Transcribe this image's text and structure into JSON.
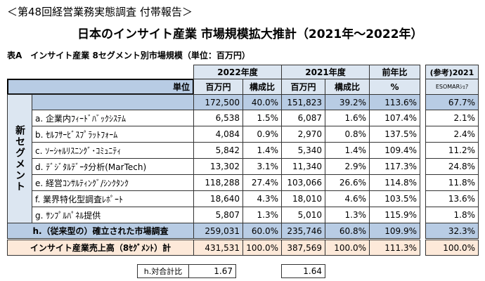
{
  "header": {
    "kicker": "＜第48回経営業務実態調査 付帯報告＞",
    "title": "日本のインサイト産業 市場規模拡大推計（2021年～2022年）"
  },
  "table": {
    "caption": "表A　インサイト産業 8セグメント別市場規模（単位：百万円）",
    "groups": [
      "2022年度",
      "2021年度",
      "前年比",
      "(参考)2021"
    ],
    "units_label": "単位",
    "units": [
      "百万円",
      "構成比",
      "百万円",
      "構成比",
      "%",
      "ESOMARｼｪｱ"
    ],
    "side_label": "新セグメント",
    "segment_total": {
      "cells": [
        "172,500",
        "40.0%",
        "151,823",
        "39.2%",
        "113.6%"
      ],
      "esomar": "67.7%"
    },
    "segments": [
      {
        "label": "a. 企業内ﾌｨｰﾄﾞﾊﾞｯｸｼｽﾃﾑ",
        "cells": [
          "6,538",
          "1.5%",
          "6,087",
          "1.6%",
          "107.4%"
        ],
        "esomar": "2.1%"
      },
      {
        "label": "b. ｾﾙﾌｻｰﾋﾞｽﾌﾟﾗｯﾄﾌｫｰﾑ",
        "cells": [
          "4,084",
          "0.9%",
          "2,970",
          "0.8%",
          "137.5%"
        ],
        "esomar": "2.4%"
      },
      {
        "label": "c. ｿｰｼｬﾙﾘｽﾆﾝｸﾞ･ｺﾐｭﾆﾃｨ",
        "cells": [
          "5,842",
          "1.4%",
          "5,340",
          "1.4%",
          "109.4%"
        ],
        "esomar": "11.2%"
      },
      {
        "label": "d. ﾃﾞｼﾞﾀﾙﾃﾞｰﾀ分析(MarTech)",
        "cells": [
          "13,302",
          "3.1%",
          "11,340",
          "2.9%",
          "117.3%"
        ],
        "esomar": "24.8%"
      },
      {
        "label": "e. 経営ｺﾝｻﾙﾃｨﾝｸﾞ/ｼﾝｸﾀﾝｸ",
        "cells": [
          "118,288",
          "27.4%",
          "103,066",
          "26.6%",
          "114.8%"
        ],
        "esomar": "11.8%"
      },
      {
        "label": "f. 業界特化型調査ﾚﾎﾟｰﾄ",
        "cells": [
          "18,640",
          "4.3%",
          "18,010",
          "4.6%",
          "103.5%"
        ],
        "esomar": "13.6%"
      },
      {
        "label": "g. ｻﾝﾌﾟﾙﾊﾟﾈﾙ提供",
        "cells": [
          "5,807",
          "1.3%",
          "5,010",
          "1.3%",
          "115.9%"
        ],
        "esomar": "1.8%"
      }
    ],
    "established": {
      "label": "h.（従来型の）確立された市場調査",
      "cells": [
        "259,031",
        "60.0%",
        "235,746",
        "60.8%",
        "109.9%"
      ],
      "esomar": "32.3%"
    },
    "total": {
      "label": "インサイト産業売上高（8ｾｸﾞﾒﾝﾄ）計",
      "cells": [
        "431,531",
        "100.0%",
        "387,569",
        "100.0%",
        "111.3%"
      ],
      "esomar": "100.0%"
    }
  },
  "footer": {
    "label": "h.対合計比",
    "v2022": "1.67",
    "v2021": "1.64"
  }
}
